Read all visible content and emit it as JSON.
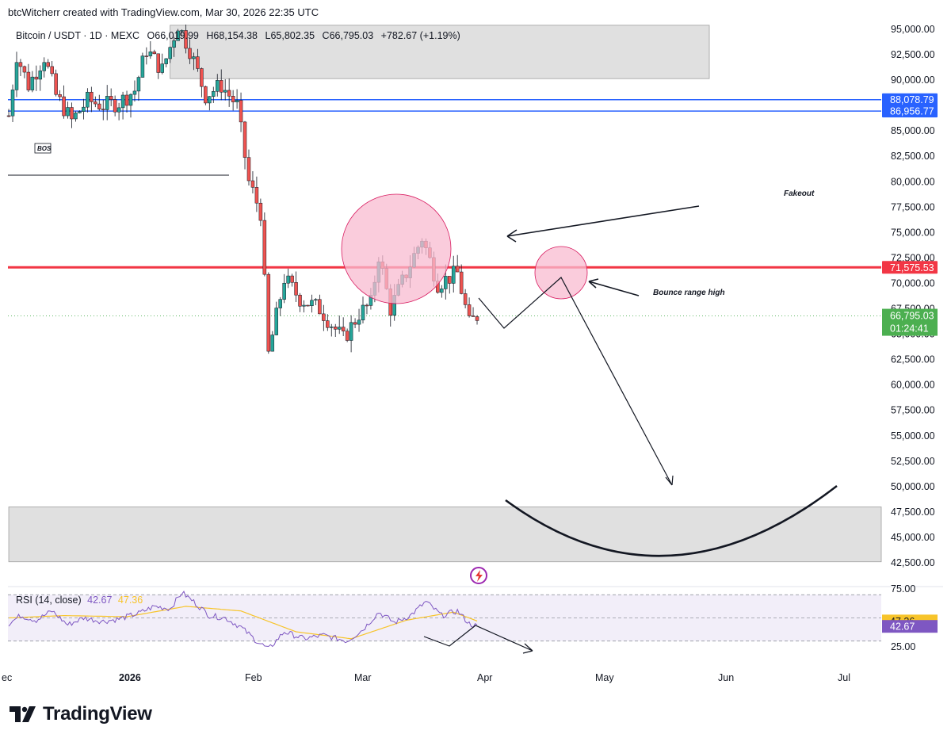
{
  "header": {
    "text": "btcWitcherr created with TradingView.com, Mar 30, 2026 22:35 UTC"
  },
  "legend": {
    "symbol": "Bitcoin / USDT · 1D · MEXC",
    "open": "O66,019.99",
    "high": "H68,154.38",
    "low": "L65,802.35",
    "close": "C66,795.03",
    "change": "+782.67 (+1.19%)"
  },
  "brand": {
    "name": "TradingView"
  },
  "colors": {
    "up": "#26a69a",
    "down": "#ef5350",
    "resistance": "#f23645",
    "blue_line": "#2962ff",
    "rsi": "#7e57c2",
    "rsi_ma": "#f7c42a",
    "price_tag": "#4caf50"
  },
  "chart_data": [
    {
      "type": "candlestick",
      "interval": "1D",
      "symbol": "Bitcoin / USDT",
      "exchange": "MEXC",
      "y_axis_ticks": [
        "95,000.00",
        "92,500.00",
        "90,000.00",
        "87,500.00",
        "85,000.00",
        "82,500.00",
        "80,000.00",
        "77,500.00",
        "75,000.00",
        "72,500.00",
        "70,000.00",
        "67,500.00",
        "65,000.00",
        "62,500.00",
        "60,000.00",
        "57,500.00",
        "55,000.00",
        "52,500.00",
        "50,000.00",
        "47,500.00",
        "45,000.00",
        "42,500.00"
      ],
      "x_axis_ticks": [
        "ec",
        "2026",
        "Feb",
        "Mar",
        "Apr",
        "May",
        "Jun",
        "Jul"
      ],
      "ylim": [
        41700,
        96200
      ],
      "close_path": [
        [
          "2025-12-01",
          86500
        ],
        [
          "2025-12-03",
          92500
        ],
        [
          "2025-12-06",
          89500
        ],
        [
          "2025-12-10",
          92300
        ],
        [
          "2025-12-13",
          88500
        ],
        [
          "2025-12-17",
          86000
        ],
        [
          "2025-12-21",
          88000
        ],
        [
          "2025-12-25",
          87500
        ],
        [
          "2025-12-29",
          87800
        ],
        [
          "2026-01-02",
          89000
        ],
        [
          "2026-01-05",
          93000
        ],
        [
          "2026-01-09",
          91000
        ],
        [
          "2026-01-13",
          95500
        ],
        [
          "2026-01-16",
          93000
        ],
        [
          "2026-01-20",
          88500
        ],
        [
          "2026-01-24",
          89500
        ],
        [
          "2026-01-28",
          87500
        ],
        [
          "2026-01-31",
          80000
        ],
        [
          "2026-02-03",
          77000
        ],
        [
          "2026-02-05",
          63000
        ],
        [
          "2026-02-09",
          70500
        ],
        [
          "2026-02-13",
          68500
        ],
        [
          "2026-02-18",
          67500
        ],
        [
          "2026-02-24",
          64500
        ],
        [
          "2026-02-28",
          67000
        ],
        [
          "2026-03-03",
          68000
        ],
        [
          "2026-03-05",
          72800
        ],
        [
          "2026-03-08",
          67500
        ],
        [
          "2026-03-12",
          71000
        ],
        [
          "2026-03-16",
          74500
        ],
        [
          "2026-03-20",
          70000
        ],
        [
          "2026-03-25",
          71000
        ],
        [
          "2026-03-28",
          66000
        ],
        [
          "2026-03-30",
          66795
        ]
      ],
      "horizontal_levels": [
        {
          "label": "88,078.79",
          "value": 88078.79,
          "color": "#2962ff"
        },
        {
          "label": "86,956.77",
          "value": 86956.77,
          "color": "#2962ff"
        },
        {
          "label": "71,575.53",
          "value": 71575.53,
          "color": "#f23645"
        }
      ],
      "last_price": {
        "label": "66,795.03",
        "countdown": "01:24:41"
      },
      "zones": [
        {
          "from": "2026-01-11",
          "to": "2026-05-28",
          "low": 90150,
          "high": 95400
        },
        {
          "from": "2025-12-01",
          "to": "2026-07-31",
          "low": 42600,
          "high": 48000
        }
      ],
      "annotations": [
        "BOS",
        "Fakeout",
        "Bounce range high"
      ]
    },
    {
      "type": "line",
      "title": "RSI (14, close)",
      "series": [
        {
          "name": "RSI",
          "value": "42.67"
        },
        {
          "name": "MA",
          "value": "47.36"
        }
      ],
      "y_axis_ticks": [
        "75.00",
        "25.00"
      ],
      "ylim": [
        18,
        78
      ],
      "bands": [
        30,
        50,
        70
      ],
      "rsi_path": [
        [
          "2025-12-01",
          45
        ],
        [
          "2025-12-04",
          52
        ],
        [
          "2025-12-08",
          48
        ],
        [
          "2025-12-12",
          56
        ],
        [
          "2025-12-16",
          44
        ],
        [
          "2025-12-20",
          50
        ],
        [
          "2025-12-25",
          47
        ],
        [
          "2025-12-29",
          49
        ],
        [
          "2026-01-03",
          54
        ],
        [
          "2026-01-07",
          60
        ],
        [
          "2026-01-11",
          58
        ],
        [
          "2026-01-14",
          72
        ],
        [
          "2026-01-17",
          64
        ],
        [
          "2026-01-21",
          52
        ],
        [
          "2026-01-25",
          50
        ],
        [
          "2026-01-29",
          42
        ],
        [
          "2026-02-02",
          30
        ],
        [
          "2026-02-05",
          23
        ],
        [
          "2026-02-09",
          38
        ],
        [
          "2026-02-14",
          32
        ],
        [
          "2026-02-19",
          35
        ],
        [
          "2026-02-25",
          30
        ],
        [
          "2026-03-01",
          40
        ],
        [
          "2026-03-05",
          55
        ],
        [
          "2026-03-09",
          46
        ],
        [
          "2026-03-13",
          52
        ],
        [
          "2026-03-17",
          64
        ],
        [
          "2026-03-21",
          52
        ],
        [
          "2026-03-25",
          56
        ],
        [
          "2026-03-28",
          45
        ],
        [
          "2026-03-30",
          42.67
        ]
      ],
      "ma_path": [
        [
          "2025-12-01",
          50
        ],
        [
          "2025-12-15",
          52
        ],
        [
          "2025-12-31",
          51
        ],
        [
          "2026-01-15",
          60
        ],
        [
          "2026-01-29",
          56
        ],
        [
          "2026-02-12",
          38
        ],
        [
          "2026-02-26",
          32
        ],
        [
          "2026-03-12",
          48
        ],
        [
          "2026-03-24",
          55
        ],
        [
          "2026-03-30",
          47.36
        ]
      ]
    }
  ]
}
